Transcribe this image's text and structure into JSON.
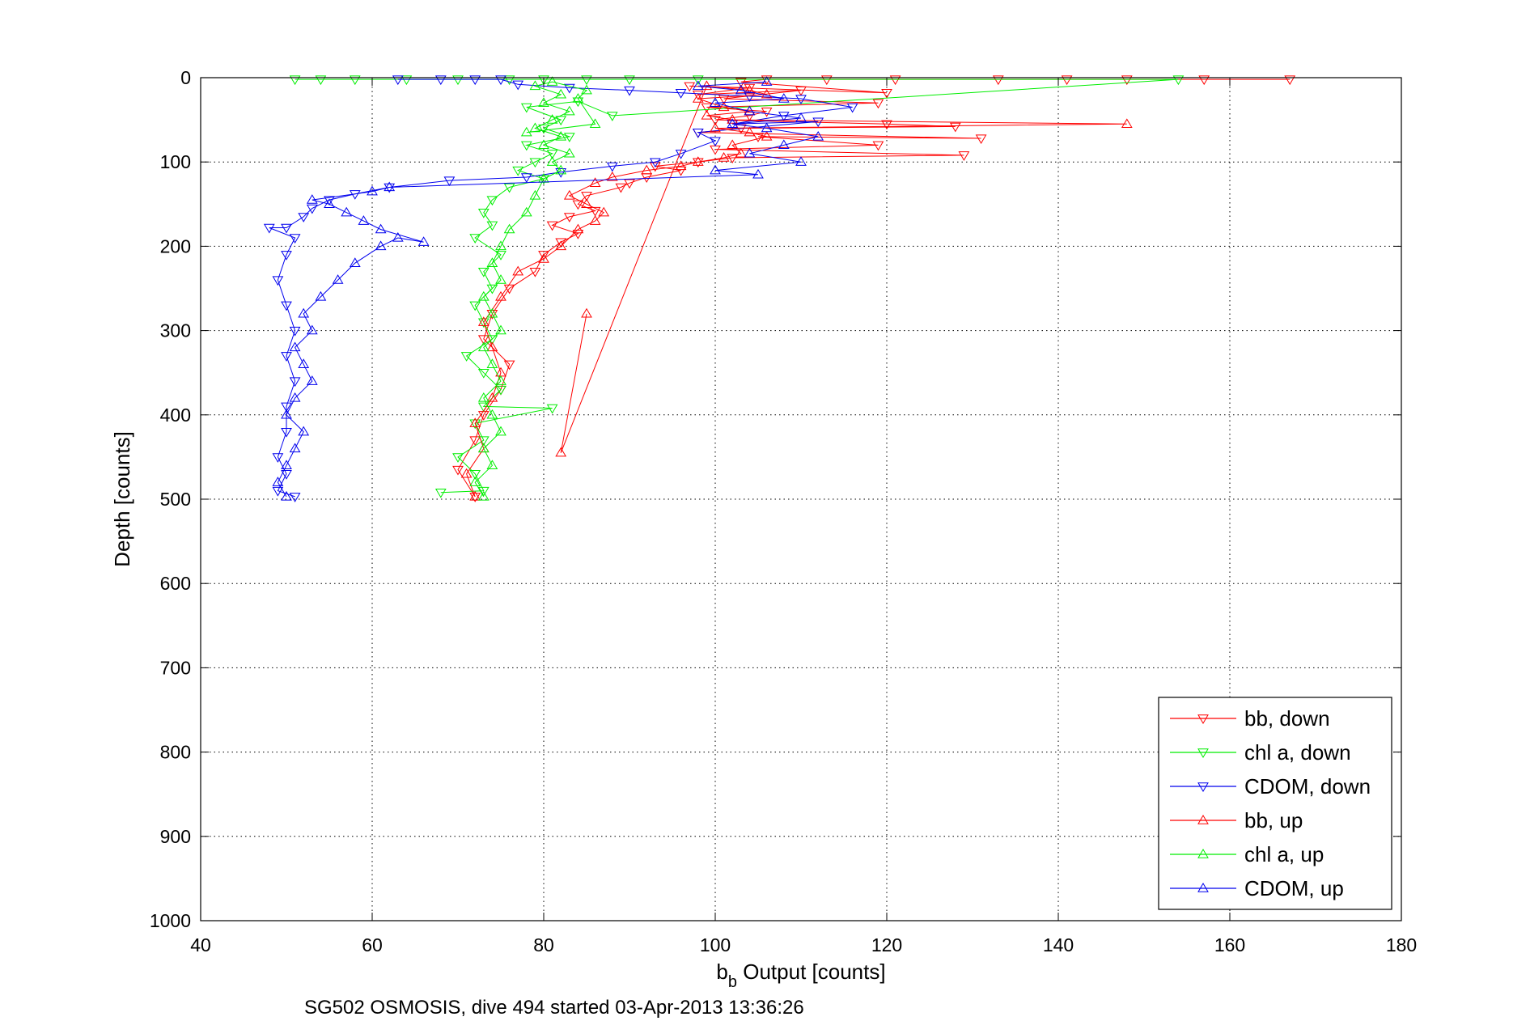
{
  "chart_data": {
    "type": "scatter",
    "caption": "SG502 OSMOSIS, dive 494 started 03-Apr-2013 13:36:26",
    "xlabel_main": "b",
    "xlabel_sub": "b",
    "xlabel_rest": " Output [counts]",
    "ylabel": "Depth [counts]",
    "xlim": [
      40,
      180
    ],
    "ylim": [
      0,
      1000
    ],
    "y_reversed": true,
    "grid": true,
    "legend_position": "bottom-right",
    "xticks": [
      "40",
      "60",
      "80",
      "100",
      "120",
      "140",
      "160",
      "180"
    ],
    "yticks": [
      "0",
      "100",
      "200",
      "300",
      "400",
      "500",
      "600",
      "700",
      "800",
      "900",
      "1000"
    ],
    "series": [
      {
        "name": "bb, down",
        "color": "#ff0000",
        "marker": "triangle-down",
        "points": [
          [
            167,
            2
          ],
          [
            157,
            2
          ],
          [
            148,
            2
          ],
          [
            141,
            2
          ],
          [
            133,
            2
          ],
          [
            121,
            2
          ],
          [
            113,
            2
          ],
          [
            106,
            2
          ],
          [
            103,
            5
          ],
          [
            120,
            18
          ],
          [
            97,
            10
          ],
          [
            104,
            12
          ],
          [
            98,
            20
          ],
          [
            110,
            15
          ],
          [
            101,
            25
          ],
          [
            119,
            30
          ],
          [
            99,
            35
          ],
          [
            106,
            40
          ],
          [
            104,
            45
          ],
          [
            100,
            50
          ],
          [
            120,
            55
          ],
          [
            128,
            58
          ],
          [
            103,
            60
          ],
          [
            98,
            65
          ],
          [
            131,
            72
          ],
          [
            105,
            70
          ],
          [
            119,
            80
          ],
          [
            100,
            85
          ],
          [
            129,
            92
          ],
          [
            102,
            95
          ],
          [
            98,
            100
          ],
          [
            93,
            105
          ],
          [
            96,
            110
          ],
          [
            92,
            118
          ],
          [
            90,
            125
          ],
          [
            89,
            130
          ],
          [
            85,
            140
          ],
          [
            84,
            150
          ],
          [
            86,
            158
          ],
          [
            83,
            165
          ],
          [
            81,
            175
          ],
          [
            84,
            185
          ],
          [
            82,
            195
          ],
          [
            80,
            210
          ],
          [
            79,
            230
          ],
          [
            76,
            250
          ],
          [
            74,
            280
          ],
          [
            73,
            310
          ],
          [
            76,
            340
          ],
          [
            75,
            370
          ],
          [
            73,
            400
          ],
          [
            72,
            430
          ],
          [
            70,
            465
          ],
          [
            72,
            497
          ]
        ]
      },
      {
        "name": "chl a, down",
        "color": "#00ee00",
        "marker": "triangle-down",
        "points": [
          [
            51,
            2
          ],
          [
            54,
            2
          ],
          [
            58,
            2
          ],
          [
            64,
            2
          ],
          [
            70,
            2
          ],
          [
            76,
            2
          ],
          [
            80,
            2
          ],
          [
            85,
            2
          ],
          [
            90,
            2
          ],
          [
            98,
            2
          ],
          [
            154,
            2
          ],
          [
            88,
            45
          ],
          [
            84,
            28
          ],
          [
            78,
            35
          ],
          [
            82,
            50
          ],
          [
            80,
            60
          ],
          [
            83,
            70
          ],
          [
            78,
            80
          ],
          [
            81,
            90
          ],
          [
            79,
            100
          ],
          [
            77,
            110
          ],
          [
            80,
            120
          ],
          [
            76,
            130
          ],
          [
            74,
            145
          ],
          [
            73,
            160
          ],
          [
            74,
            175
          ],
          [
            72,
            190
          ],
          [
            75,
            210
          ],
          [
            73,
            230
          ],
          [
            74,
            250
          ],
          [
            72,
            270
          ],
          [
            73,
            290
          ],
          [
            74,
            310
          ],
          [
            71,
            330
          ],
          [
            73,
            350
          ],
          [
            75,
            370
          ],
          [
            73,
            390
          ],
          [
            81,
            392
          ],
          [
            72,
            410
          ],
          [
            73,
            430
          ],
          [
            70,
            450
          ],
          [
            72,
            470
          ],
          [
            73,
            490
          ],
          [
            68,
            492
          ]
        ]
      },
      {
        "name": "CDOM, down",
        "color": "#0000ee",
        "marker": "triangle-down",
        "points": [
          [
            63,
            2
          ],
          [
            68,
            2
          ],
          [
            72,
            2
          ],
          [
            75,
            2
          ],
          [
            77,
            8
          ],
          [
            83,
            12
          ],
          [
            90,
            15
          ],
          [
            96,
            18
          ],
          [
            104,
            22
          ],
          [
            110,
            25
          ],
          [
            116,
            35
          ],
          [
            108,
            45
          ],
          [
            102,
            55
          ],
          [
            112,
            52
          ],
          [
            98,
            65
          ],
          [
            100,
            75
          ],
          [
            96,
            90
          ],
          [
            93,
            100
          ],
          [
            88,
            105
          ],
          [
            82,
            112
          ],
          [
            78,
            118
          ],
          [
            69,
            122
          ],
          [
            62,
            130
          ],
          [
            58,
            138
          ],
          [
            55,
            145
          ],
          [
            53,
            155
          ],
          [
            52,
            165
          ],
          [
            50,
            178
          ],
          [
            48,
            178
          ],
          [
            51,
            190
          ],
          [
            50,
            210
          ],
          [
            49,
            240
          ],
          [
            50,
            270
          ],
          [
            51,
            300
          ],
          [
            50,
            330
          ],
          [
            51,
            360
          ],
          [
            50,
            390
          ],
          [
            50,
            420
          ],
          [
            49,
            450
          ],
          [
            50,
            470
          ],
          [
            49,
            490
          ],
          [
            51,
            497
          ]
        ]
      },
      {
        "name": "bb, up",
        "color": "#ff0000",
        "marker": "triangle-up",
        "points": [
          [
            72,
            497
          ],
          [
            71,
            470
          ],
          [
            73,
            440
          ],
          [
            72,
            410
          ],
          [
            74,
            380
          ],
          [
            75,
            350
          ],
          [
            74,
            320
          ],
          [
            73,
            290
          ],
          [
            75,
            260
          ],
          [
            77,
            230
          ],
          [
            80,
            215
          ],
          [
            82,
            200
          ],
          [
            84,
            180
          ],
          [
            86,
            170
          ],
          [
            87,
            160
          ],
          [
            85,
            150
          ],
          [
            83,
            140
          ],
          [
            86,
            125
          ],
          [
            88,
            118
          ],
          [
            92,
            110
          ],
          [
            96,
            105
          ],
          [
            98,
            100
          ],
          [
            101,
            95
          ],
          [
            103,
            90
          ],
          [
            102,
            80
          ],
          [
            106,
            70
          ],
          [
            104,
            65
          ],
          [
            100,
            60
          ],
          [
            148,
            55
          ],
          [
            102,
            50
          ],
          [
            99,
            45
          ],
          [
            104,
            40
          ],
          [
            101,
            35
          ],
          [
            98,
            25
          ],
          [
            106,
            20
          ],
          [
            104,
            15
          ],
          [
            99,
            10
          ],
          [
            82,
            445
          ],
          [
            85,
            280
          ]
        ]
      },
      {
        "name": "chl a, up",
        "color": "#00ee00",
        "marker": "triangle-up",
        "points": [
          [
            73,
            497
          ],
          [
            72,
            480
          ],
          [
            74,
            460
          ],
          [
            73,
            440
          ],
          [
            75,
            420
          ],
          [
            74,
            400
          ],
          [
            73,
            380
          ],
          [
            75,
            360
          ],
          [
            74,
            340
          ],
          [
            73,
            320
          ],
          [
            75,
            300
          ],
          [
            74,
            280
          ],
          [
            73,
            260
          ],
          [
            75,
            240
          ],
          [
            74,
            220
          ],
          [
            75,
            200
          ],
          [
            76,
            180
          ],
          [
            78,
            160
          ],
          [
            79,
            140
          ],
          [
            80,
            120
          ],
          [
            82,
            110
          ],
          [
            81,
            100
          ],
          [
            83,
            90
          ],
          [
            80,
            80
          ],
          [
            82,
            70
          ],
          [
            79,
            60
          ],
          [
            81,
            50
          ],
          [
            83,
            40
          ],
          [
            80,
            30
          ],
          [
            82,
            20
          ],
          [
            79,
            10
          ],
          [
            81,
            5
          ],
          [
            85,
            15
          ],
          [
            84,
            25
          ],
          [
            86,
            55
          ],
          [
            78,
            65
          ]
        ]
      },
      {
        "name": "CDOM, up",
        "color": "#0000ee",
        "marker": "triangle-up",
        "points": [
          [
            50,
            497
          ],
          [
            49,
            480
          ],
          [
            50,
            460
          ],
          [
            51,
            440
          ],
          [
            52,
            420
          ],
          [
            50,
            400
          ],
          [
            51,
            380
          ],
          [
            53,
            360
          ],
          [
            52,
            340
          ],
          [
            51,
            320
          ],
          [
            53,
            300
          ],
          [
            52,
            280
          ],
          [
            54,
            260
          ],
          [
            56,
            240
          ],
          [
            58,
            220
          ],
          [
            61,
            200
          ],
          [
            63,
            190
          ],
          [
            66,
            195
          ],
          [
            61,
            180
          ],
          [
            59,
            170
          ],
          [
            57,
            160
          ],
          [
            55,
            150
          ],
          [
            53,
            145
          ],
          [
            60,
            135
          ],
          [
            62,
            130
          ],
          [
            105,
            115
          ],
          [
            100,
            110
          ],
          [
            110,
            100
          ],
          [
            104,
            90
          ],
          [
            108,
            80
          ],
          [
            112,
            70
          ],
          [
            106,
            60
          ],
          [
            102,
            55
          ],
          [
            110,
            48
          ],
          [
            104,
            40
          ],
          [
            100,
            30
          ],
          [
            108,
            25
          ],
          [
            103,
            15
          ],
          [
            98,
            10
          ],
          [
            106,
            5
          ]
        ]
      }
    ]
  }
}
